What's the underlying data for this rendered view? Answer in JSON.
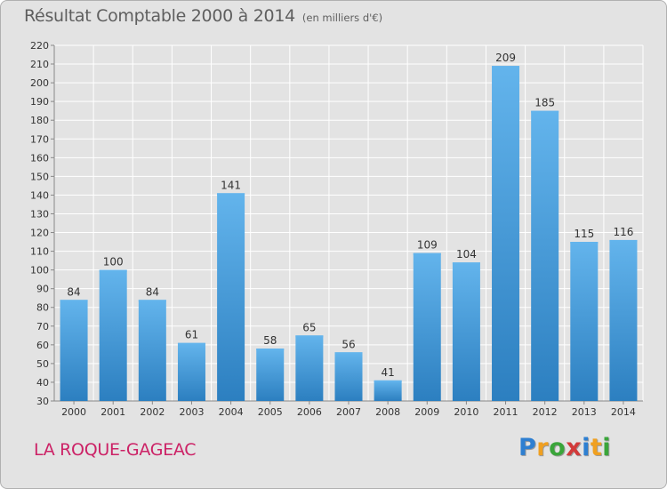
{
  "title": "Résultat Comptable 2000 à 2014",
  "subtitle": "(en milliers d'€)",
  "place_name": "LA ROQUE-GAGEAC",
  "brand": {
    "letters": [
      "P",
      "r",
      "o",
      "x",
      "i",
      "t",
      "i"
    ],
    "colors": [
      "#2e7fd1",
      "#f0a020",
      "#3aa53a",
      "#d23a3a",
      "#2e7fd1",
      "#f0a020",
      "#3aa53a"
    ]
  },
  "colors": {
    "bar_light": "#63b4ec",
    "bar_dark": "#2c7fc0",
    "grid": "#ffffff",
    "plot_bg": "#e3e3e3",
    "text": "#333333"
  },
  "chart_data": {
    "type": "bar",
    "title": "Résultat Comptable 2000 à 2014",
    "subtitle": "(en milliers d'€)",
    "categories": [
      "2000",
      "2001",
      "2002",
      "2003",
      "2004",
      "2005",
      "2006",
      "2007",
      "2008",
      "2009",
      "2010",
      "2011",
      "2012",
      "2013",
      "2014"
    ],
    "values": [
      84,
      100,
      84,
      61,
      141,
      58,
      65,
      56,
      41,
      109,
      104,
      209,
      185,
      115,
      116
    ],
    "ylim": [
      30,
      220
    ],
    "yticks": [
      30,
      40,
      50,
      60,
      70,
      80,
      90,
      100,
      110,
      120,
      130,
      140,
      150,
      160,
      170,
      180,
      190,
      200,
      210,
      220
    ],
    "grid": true
  }
}
